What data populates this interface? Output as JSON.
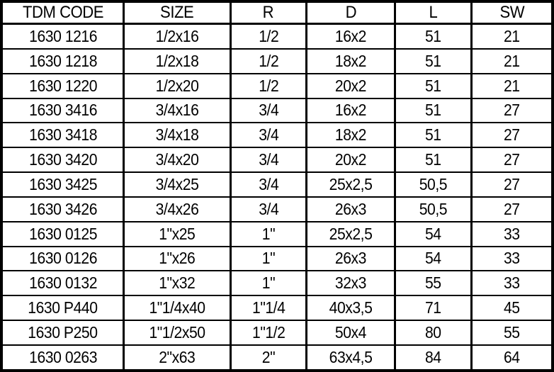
{
  "table": {
    "columns": [
      "TDM CODE",
      "SIZE",
      "R",
      "D",
      "L",
      "SW"
    ],
    "rows": [
      [
        "1630 1216",
        "1/2x16",
        "1/2",
        "16x2",
        "51",
        "21"
      ],
      [
        "1630 1218",
        "1/2x18",
        "1/2",
        "18x2",
        "51",
        "21"
      ],
      [
        "1630 1220",
        "1/2x20",
        "1/2",
        "20x2",
        "51",
        "21"
      ],
      [
        "1630 3416",
        "3/4x16",
        "3/4",
        "16x2",
        "51",
        "27"
      ],
      [
        "1630 3418",
        "3/4x18",
        "3/4",
        "18x2",
        "51",
        "27"
      ],
      [
        "1630 3420",
        "3/4x20",
        "3/4",
        "20x2",
        "51",
        "27"
      ],
      [
        "1630 3425",
        "3/4x25",
        "3/4",
        "25x2,5",
        "50,5",
        "27"
      ],
      [
        "1630 3426",
        "3/4x26",
        "3/4",
        "26x3",
        "50,5",
        "27"
      ],
      [
        "1630 0125",
        "1\"x25",
        "1\"",
        "25x2,5",
        "54",
        "33"
      ],
      [
        "1630 0126",
        "1\"x26",
        "1\"",
        "26x3",
        "54",
        "33"
      ],
      [
        "1630 0132",
        "1\"x32",
        "1\"",
        "32x3",
        "55",
        "33"
      ],
      [
        "1630 P440",
        "1\"1/4x40",
        "1\"1/4",
        "40x3,5",
        "71",
        "45"
      ],
      [
        "1630 P250",
        "1\"1/2x50",
        "1\"1/2",
        "50x4",
        "80",
        "55"
      ],
      [
        "1630 0263",
        "2\"x63",
        "2\"",
        "63x4,5",
        "84",
        "64"
      ]
    ],
    "column_width_percent": [
      22.2,
      19.3,
      13.8,
      16.0,
      13.9,
      14.7
    ]
  },
  "colors": {
    "border": "#000000",
    "text": "#000000",
    "background": "#ffffff"
  }
}
